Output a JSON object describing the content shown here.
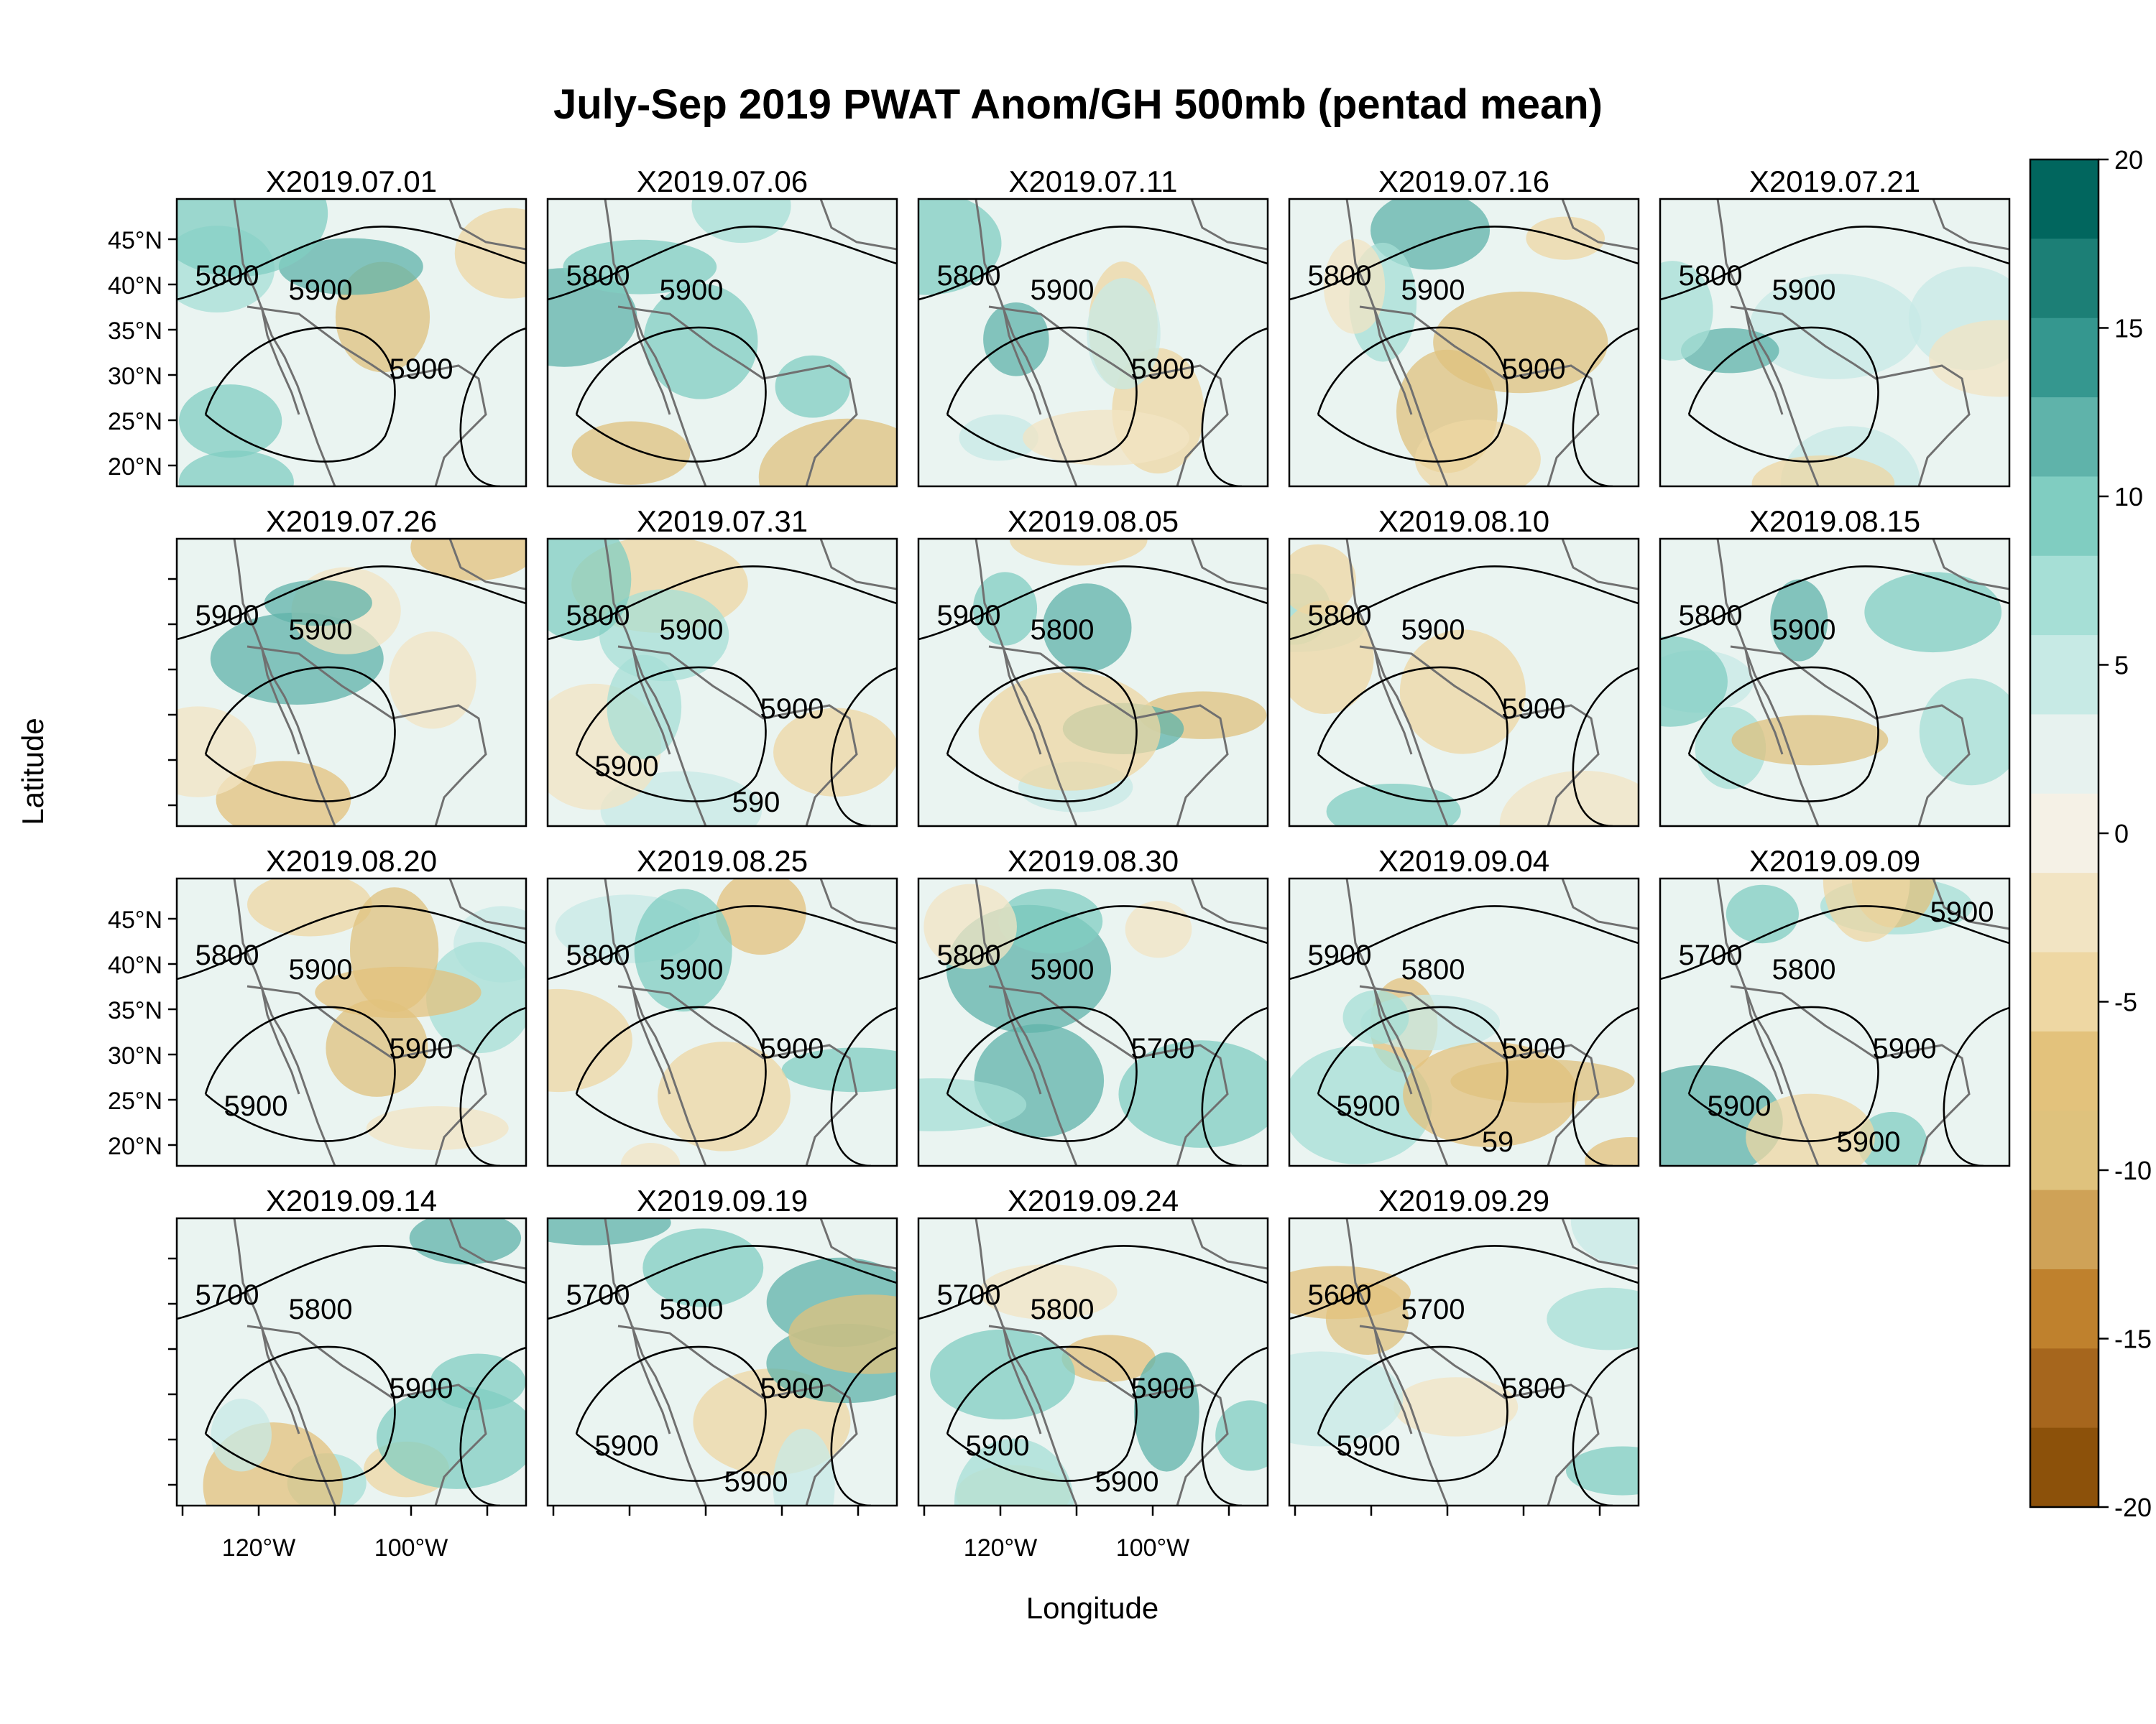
{
  "title": "July-Sep 2019 PWAT Anom/GH 500mb (pentad mean)",
  "xlabel": "Longitude",
  "ylabel": "Latitude",
  "lat_ticks": [
    "45°N",
    "40°N",
    "35°N",
    "30°N",
    "25°N",
    "20°N"
  ],
  "lon_ticks": [
    "120°W",
    "100°W"
  ],
  "colorbar": {
    "ticks": [
      "20",
      "15",
      "10",
      "5",
      "0",
      "-5",
      "-10",
      "-15",
      "-20"
    ],
    "range": [
      -20,
      20
    ],
    "colors_high_to_low": [
      "#01665e",
      "#1c7f76",
      "#35978f",
      "#5fb3aa",
      "#80cdc1",
      "#a6dfd6",
      "#c7eae5",
      "#e7f2ef",
      "#f5f1e6",
      "#f2e4c3",
      "#eed7a3",
      "#e3c27c",
      "#dfc27d",
      "#cfa257",
      "#bf812d",
      "#a6661d",
      "#8c510a"
    ]
  },
  "panels": [
    {
      "label": "X2019.07.01",
      "contours": [
        "5800",
        "5900",
        "5900"
      ]
    },
    {
      "label": "X2019.07.06",
      "contours": [
        "5800",
        "5900"
      ]
    },
    {
      "label": "X2019.07.11",
      "contours": [
        "5800",
        "5900",
        "5900"
      ]
    },
    {
      "label": "X2019.07.16",
      "contours": [
        "5800",
        "5900",
        "5900"
      ]
    },
    {
      "label": "X2019.07.21",
      "contours": [
        "5800",
        "5900"
      ]
    },
    {
      "label": "X2019.07.26",
      "contours": [
        "5900",
        "5900"
      ]
    },
    {
      "label": "X2019.07.31",
      "contours": [
        "5800",
        "5900",
        "5900",
        "5900",
        "590"
      ]
    },
    {
      "label": "X2019.08.05",
      "contours": [
        "5900",
        "5800"
      ]
    },
    {
      "label": "X2019.08.10",
      "contours": [
        "5800",
        "5900",
        "5900"
      ]
    },
    {
      "label": "X2019.08.15",
      "contours": [
        "5800",
        "5900"
      ]
    },
    {
      "label": "X2019.08.20",
      "contours": [
        "5800",
        "5900",
        "5900",
        "5900"
      ]
    },
    {
      "label": "X2019.08.25",
      "contours": [
        "5800",
        "5900",
        "5900"
      ]
    },
    {
      "label": "X2019.08.30",
      "contours": [
        "5800",
        "5900",
        "5700"
      ]
    },
    {
      "label": "X2019.09.04",
      "contours": [
        "5900",
        "5800",
        "5900",
        "5900",
        "59"
      ]
    },
    {
      "label": "X2019.09.09",
      "contours": [
        "5700",
        "5800",
        "5900",
        "5900",
        "5900",
        "5900"
      ]
    },
    {
      "label": "X2019.09.14",
      "contours": [
        "5700",
        "5800",
        "5900"
      ]
    },
    {
      "label": "X2019.09.19",
      "contours": [
        "5700",
        "5800",
        "5900",
        "5900",
        "5900"
      ]
    },
    {
      "label": "X2019.09.24",
      "contours": [
        "5700",
        "5800",
        "5900",
        "5900",
        "5900"
      ]
    },
    {
      "label": "X2019.09.29",
      "contours": [
        "5600",
        "5700",
        "5800",
        "5900"
      ]
    }
  ]
}
